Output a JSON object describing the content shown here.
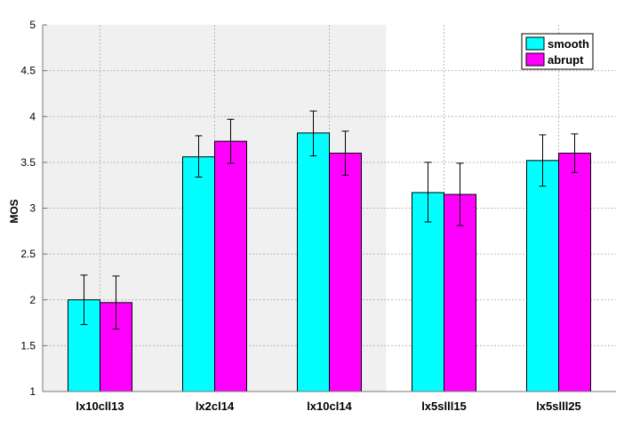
{
  "chart_data": {
    "type": "bar",
    "categories": [
      "lx10cll13",
      "lx2cl14",
      "lx10cl14",
      "lx5slll15",
      "lx5slll25"
    ],
    "series": [
      {
        "name": "smooth",
        "color": "#00ffff",
        "values": [
          2.0,
          3.56,
          3.82,
          3.17,
          3.52
        ],
        "error_low": [
          1.73,
          3.34,
          3.57,
          2.85,
          3.24
        ],
        "error_high": [
          2.27,
          3.79,
          4.06,
          3.5,
          3.8
        ]
      },
      {
        "name": "abrupt",
        "color": "#ff00ff",
        "values": [
          1.97,
          3.73,
          3.6,
          3.15,
          3.6
        ],
        "error_low": [
          1.68,
          3.49,
          3.36,
          2.81,
          3.39
        ],
        "error_high": [
          2.26,
          3.97,
          3.84,
          3.49,
          3.81
        ]
      }
    ],
    "title": "",
    "xlabel": "",
    "ylabel": "MOS",
    "ylim": [
      1,
      5
    ],
    "yticks": [
      "1",
      "1.5",
      "2",
      "2.5",
      "3",
      "3.5",
      "4",
      "4.5",
      "5"
    ],
    "grid": true,
    "legend_position": "top-right",
    "shaded_background_categories": [
      0,
      1,
      2
    ],
    "shade_color": "#f0f0f0"
  }
}
